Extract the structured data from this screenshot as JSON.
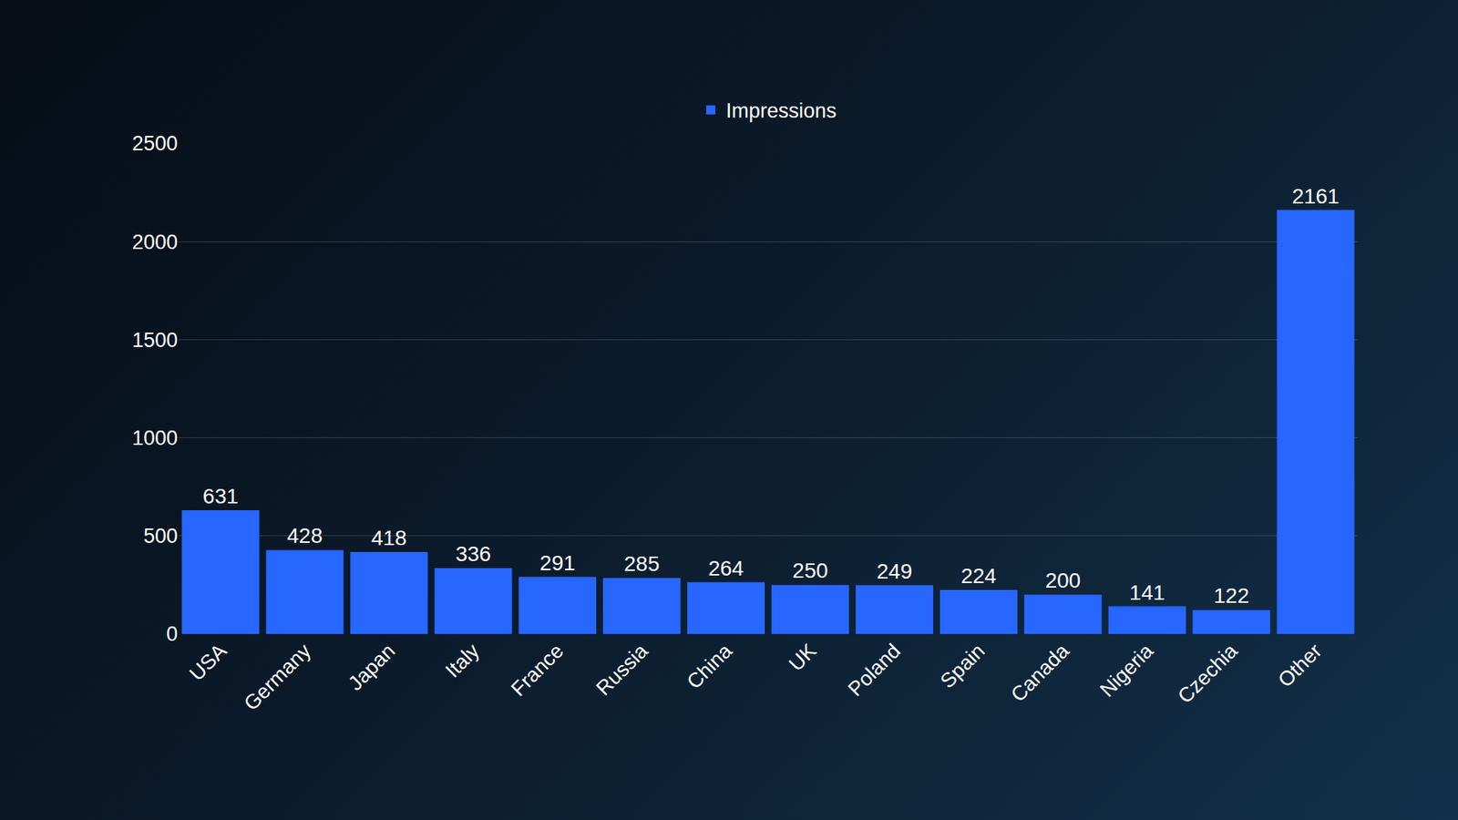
{
  "chart_data": {
    "type": "bar",
    "categories": [
      "USA",
      "Germany",
      "Japan",
      "Italy",
      "France",
      "Russia",
      "China",
      "UK",
      "Poland",
      "Spain",
      "Canada",
      "Nigeria",
      "Czechia",
      "Other"
    ],
    "series": [
      {
        "name": "Impressions",
        "color": "#2766ff",
        "values": [
          631,
          428,
          418,
          336,
          291,
          285,
          264,
          250,
          249,
          224,
          200,
          141,
          122,
          2161
        ]
      }
    ],
    "ylim": [
      0,
      2500
    ],
    "yticks": [
      0,
      500,
      1000,
      1500,
      2000,
      2500
    ],
    "grid": true,
    "legend": "top",
    "data_labels": true
  }
}
